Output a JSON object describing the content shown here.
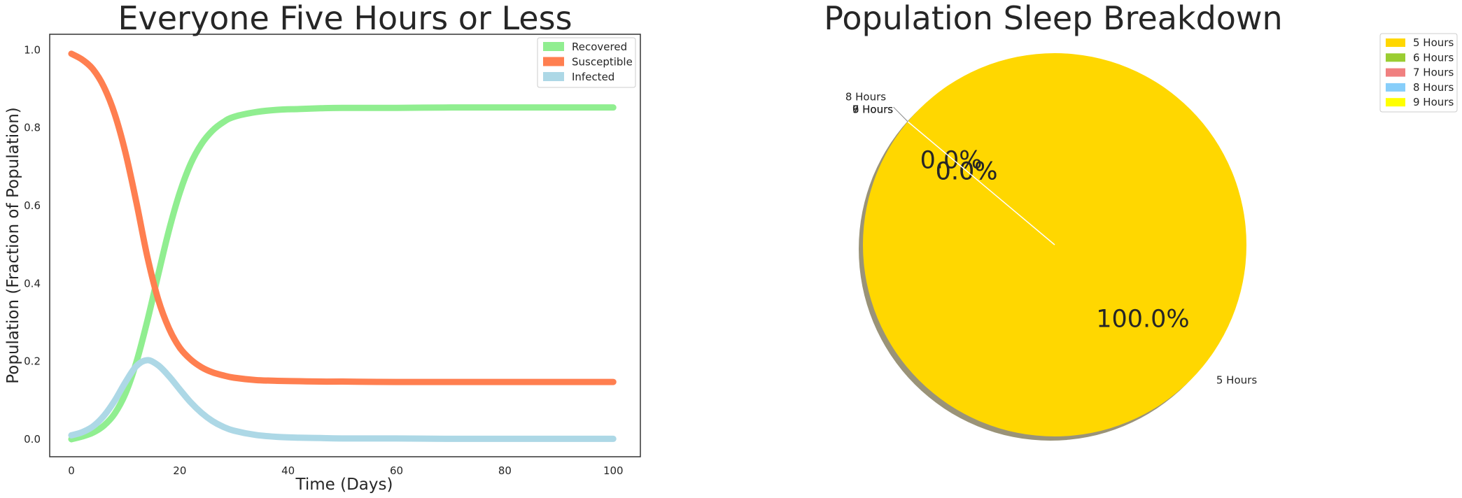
{
  "chart_data": [
    {
      "type": "line",
      "title": "Everyone Five Hours or Less",
      "xlabel": "Time (Days)",
      "ylabel": "Population (Fraction of Population)",
      "xlim": [
        -4,
        105
      ],
      "ylim": [
        -0.045,
        1.04
      ],
      "xticks": [
        0,
        20,
        40,
        60,
        80,
        100
      ],
      "xtick_labels": [
        "0",
        "20",
        "40",
        "60",
        "80",
        "100"
      ],
      "yticks": [
        0.0,
        0.2,
        0.4,
        0.6,
        0.8,
        1.0
      ],
      "ytick_labels": [
        "0.0",
        "0.2",
        "0.4",
        "0.6",
        "0.8",
        "1.0"
      ],
      "grid": false,
      "legend": "top-right",
      "x": [
        0,
        2,
        4,
        6,
        8,
        10,
        12,
        14,
        16,
        18,
        20,
        22,
        24,
        26,
        28,
        30,
        34,
        38,
        42,
        46,
        50,
        60,
        70,
        80,
        90,
        100
      ],
      "series": [
        {
          "name": "Recovered",
          "color": "#90ee90",
          "values": [
            0.0,
            0.007,
            0.017,
            0.035,
            0.066,
            0.118,
            0.198,
            0.303,
            0.421,
            0.536,
            0.633,
            0.707,
            0.758,
            0.792,
            0.814,
            0.828,
            0.84,
            0.846,
            0.848,
            0.85,
            0.851,
            0.851,
            0.852,
            0.852,
            0.852,
            0.852
          ]
        },
        {
          "name": "Susceptible",
          "color": "#ff7f50",
          "values": [
            0.99,
            0.975,
            0.95,
            0.905,
            0.835,
            0.735,
            0.608,
            0.47,
            0.36,
            0.285,
            0.235,
            0.205,
            0.185,
            0.172,
            0.164,
            0.158,
            0.152,
            0.15,
            0.149,
            0.148,
            0.148,
            0.147,
            0.147,
            0.147,
            0.147,
            0.147
          ]
        },
        {
          "name": "Infected",
          "color": "#add8e6",
          "values": [
            0.01,
            0.018,
            0.033,
            0.06,
            0.099,
            0.147,
            0.188,
            0.203,
            0.19,
            0.162,
            0.128,
            0.095,
            0.068,
            0.047,
            0.032,
            0.022,
            0.011,
            0.006,
            0.004,
            0.003,
            0.002,
            0.002,
            0.001,
            0.001,
            0.001,
            0.001
          ]
        }
      ]
    },
    {
      "type": "pie",
      "title": "Population Sleep Breakdown",
      "legend": "top-right",
      "shadow": true,
      "start_angle_deg": 140,
      "slices": [
        {
          "label": "5 Hours",
          "value": 100.0,
          "pct_label": "100.0%",
          "color": "#ffd700"
        },
        {
          "label": "6 Hours",
          "value": 0.0,
          "pct_label": "0.0%",
          "color": "#9acd32"
        },
        {
          "label": "7 Hours",
          "value": 0.0,
          "pct_label": "0.0%",
          "color": "#f08080"
        },
        {
          "label": "8 Hours",
          "value": 0.0,
          "pct_label": "0.0%",
          "color": "#87cefa"
        },
        {
          "label": "9 Hours",
          "value": 0.0,
          "pct_label": "",
          "color": "#ffff00"
        }
      ],
      "legend_entries": [
        "5 Hours",
        "6 Hours",
        "7 Hours",
        "8 Hours",
        "9 Hours"
      ]
    }
  ]
}
